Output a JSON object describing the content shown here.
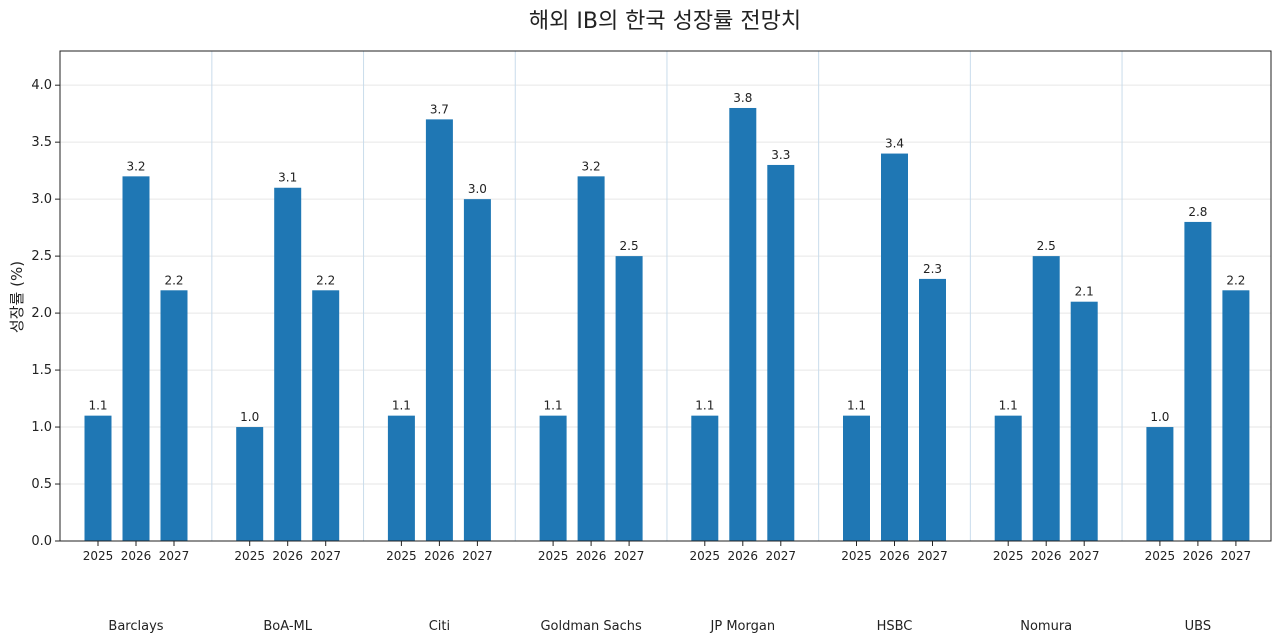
{
  "chart_data": {
    "type": "bar",
    "title": "해외 IB의 한국 성장률 전망치",
    "ylabel": "성장률 (%)",
    "xlabel": "",
    "ylim": [
      0,
      4.3
    ],
    "yticks": [
      "0.0",
      "0.5",
      "1.0",
      "1.5",
      "2.0",
      "2.5",
      "3.0",
      "3.5",
      "4.0"
    ],
    "grid": true,
    "bar_color": "#1f77b4",
    "groups": [
      {
        "name": "Barclays",
        "years": [
          "2025",
          "2026",
          "2027"
        ],
        "values": [
          1.1,
          3.2,
          2.2
        ]
      },
      {
        "name": "BoA-ML",
        "years": [
          "2025",
          "2026",
          "2027"
        ],
        "values": [
          1.0,
          3.1,
          2.2
        ]
      },
      {
        "name": "Citi",
        "years": [
          "2025",
          "2026",
          "2027"
        ],
        "values": [
          1.1,
          3.7,
          3.0
        ]
      },
      {
        "name": "Goldman Sachs",
        "years": [
          "2025",
          "2026",
          "2027"
        ],
        "values": [
          1.1,
          3.2,
          2.5
        ]
      },
      {
        "name": "JP Morgan",
        "years": [
          "2025",
          "2026",
          "2027"
        ],
        "values": [
          1.1,
          3.8,
          3.3
        ]
      },
      {
        "name": "HSBC",
        "years": [
          "2025",
          "2026",
          "2027"
        ],
        "values": [
          1.1,
          3.4,
          2.3
        ]
      },
      {
        "name": "Nomura",
        "years": [
          "2025",
          "2026",
          "2027"
        ],
        "values": [
          1.1,
          2.5,
          2.1
        ]
      },
      {
        "name": "UBS",
        "years": [
          "2025",
          "2026",
          "2027"
        ],
        "values": [
          1.0,
          2.8,
          2.2
        ]
      }
    ]
  }
}
